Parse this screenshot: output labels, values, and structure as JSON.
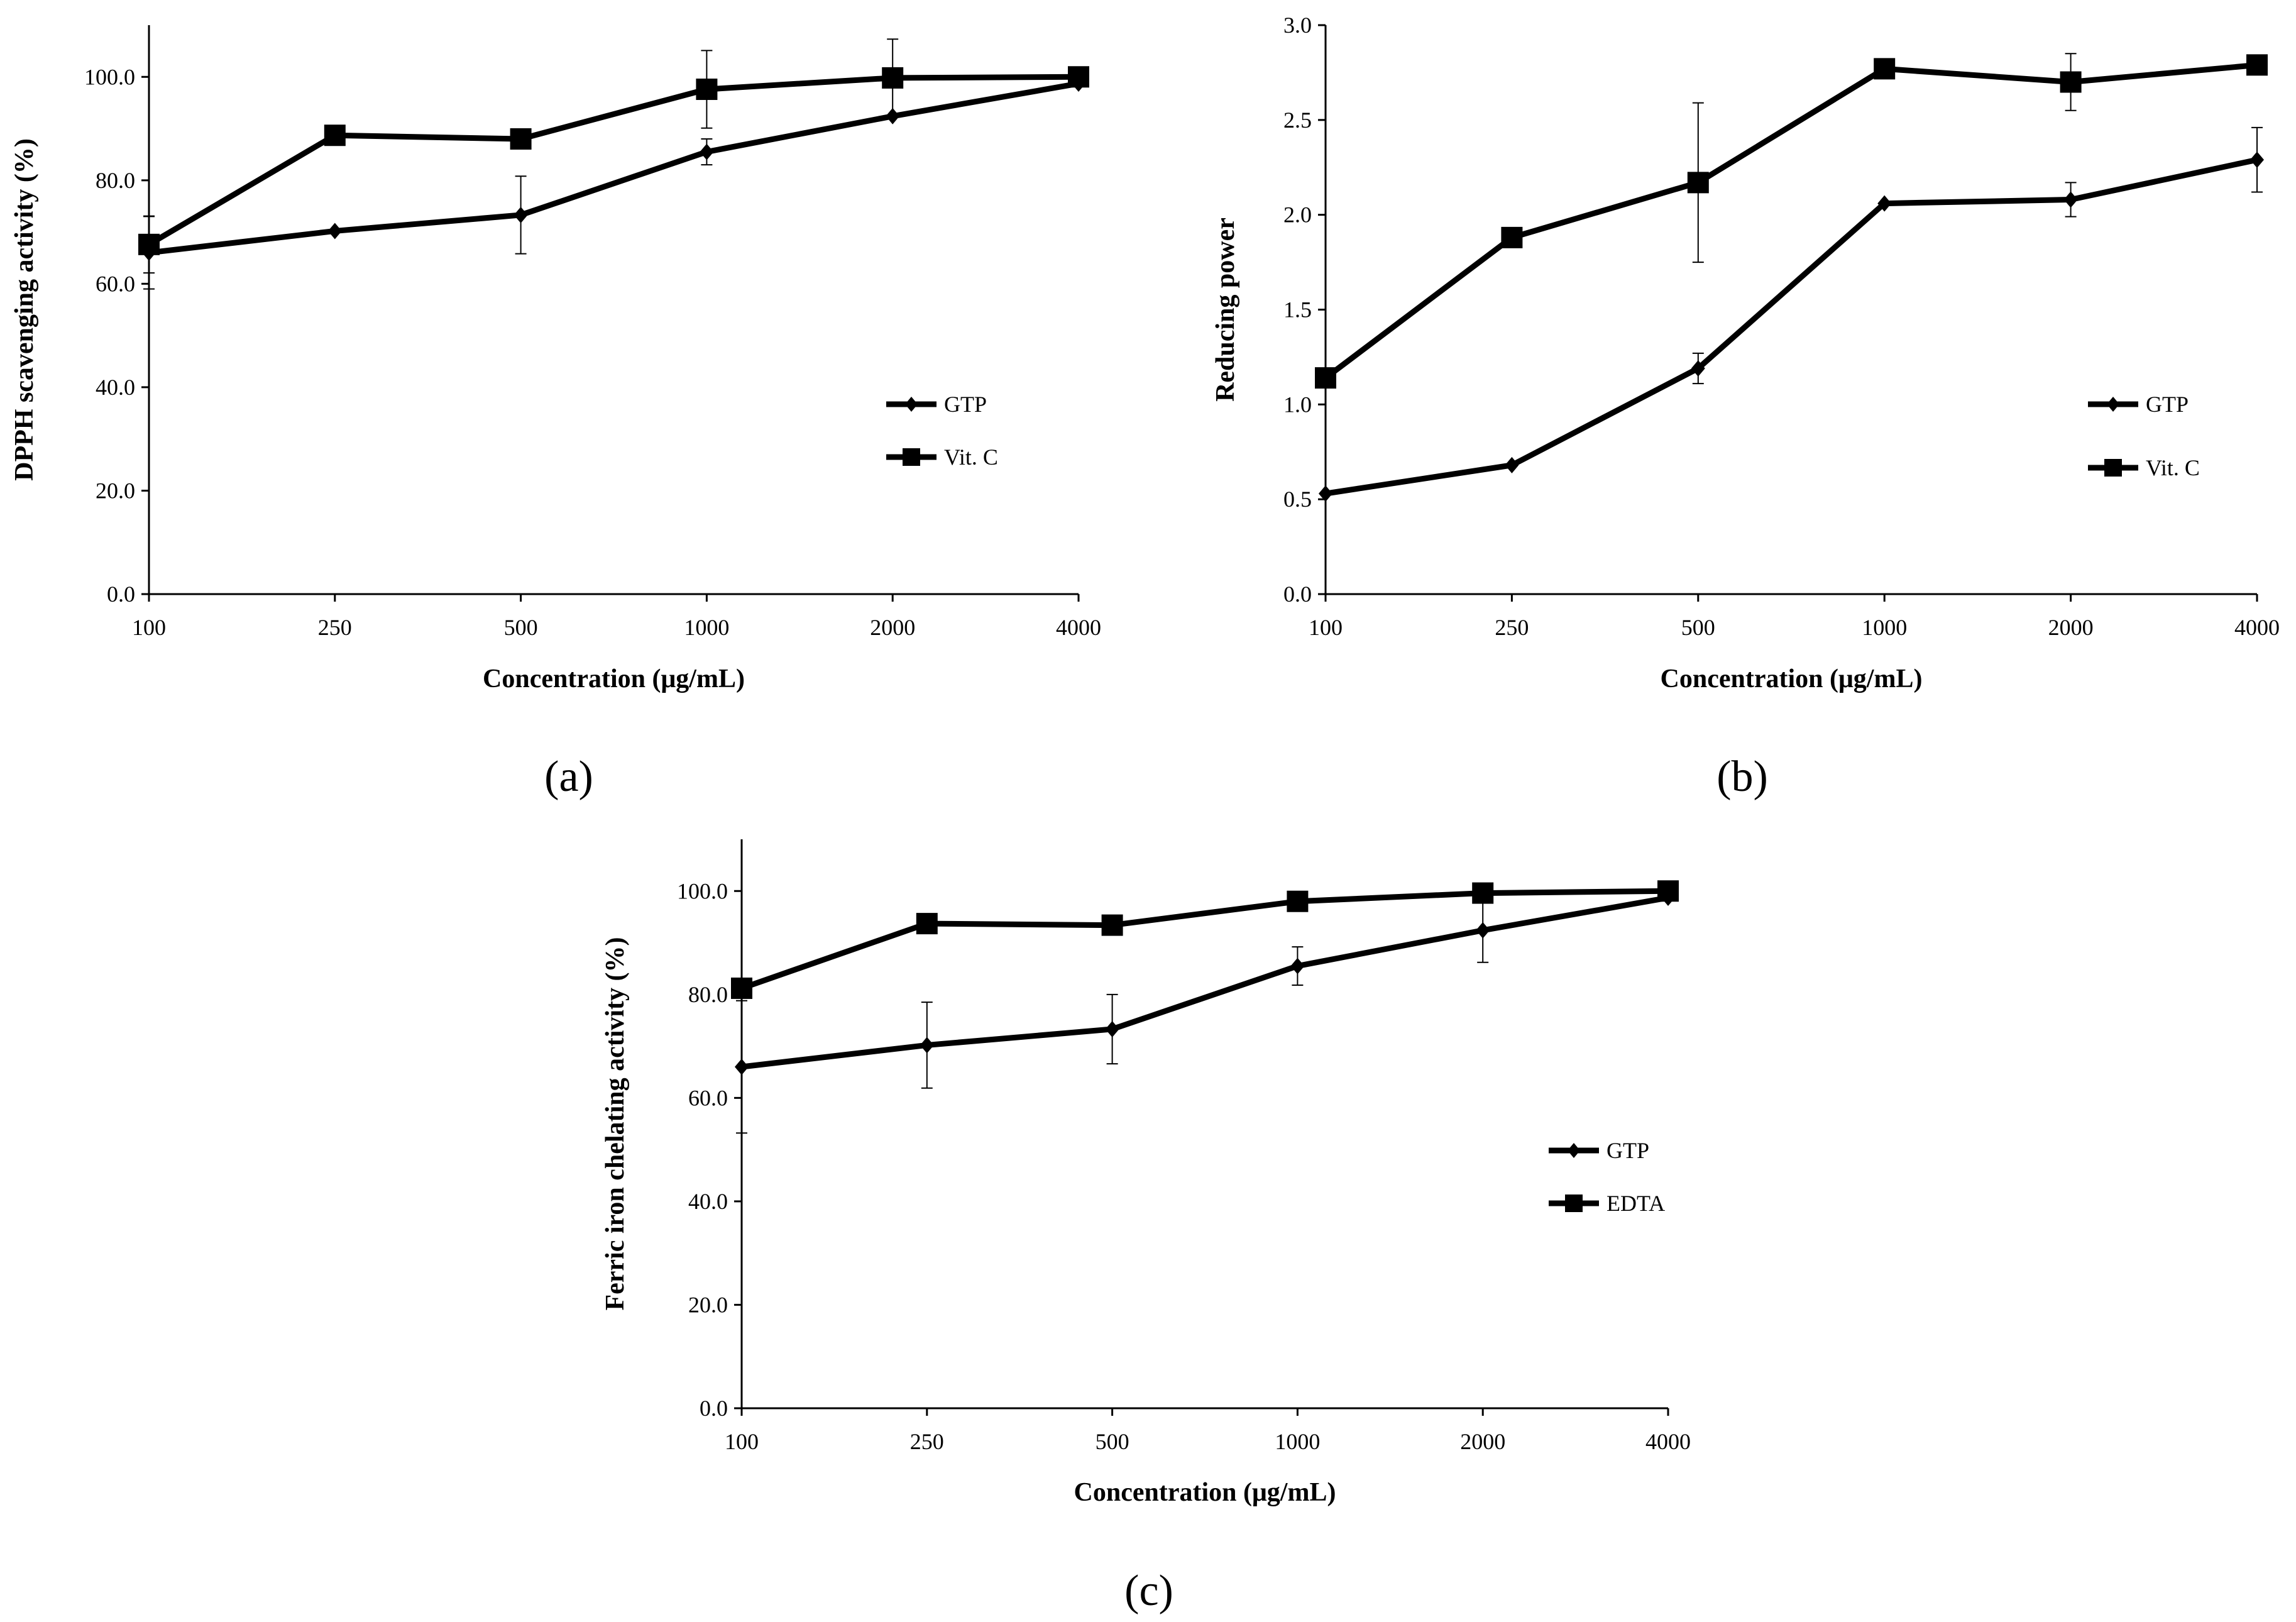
{
  "colors": {
    "ink": "#000000",
    "background": "#ffffff"
  },
  "chart_data": [
    {
      "type": "line",
      "panel_label": "(a)",
      "categories": [
        "100",
        "250",
        "500",
        "1000",
        "2000",
        "4000"
      ],
      "xlabel": "Concentration (μg/mL)",
      "ylabel": "DPPH scavenging activity (%)",
      "ylim": [
        0,
        110
      ],
      "yticks": [
        0,
        20,
        40,
        60,
        80,
        100
      ],
      "ytick_labels": [
        "0.0",
        "20.0",
        "40.0",
        "60.0",
        "80.0",
        "100.0"
      ],
      "grid": false,
      "legend_position": "right",
      "series": [
        {
          "name": "GTP",
          "marker": "diamond",
          "values": [
            66.0,
            70.2,
            73.3,
            85.5,
            92.4,
            98.7
          ],
          "error": [
            7.0,
            0,
            7.5,
            2.5,
            0,
            0
          ]
        },
        {
          "name": "Vit. C",
          "marker": "square",
          "values": [
            67.6,
            88.7,
            88.0,
            97.6,
            99.8,
            100.0
          ],
          "error": [
            5.5,
            1.5,
            0,
            7.5,
            7.5,
            0
          ]
        }
      ]
    },
    {
      "type": "line",
      "panel_label": "(b)",
      "categories": [
        "100",
        "250",
        "500",
        "1000",
        "2000",
        "4000"
      ],
      "xlabel": "Concentration (μg/mL)",
      "ylabel": "Reducing power",
      "ylim": [
        0,
        3.0
      ],
      "yticks": [
        0,
        0.5,
        1.0,
        1.5,
        2.0,
        2.5,
        3.0
      ],
      "ytick_labels": [
        "0.0",
        "0.5",
        "1.0",
        "1.5",
        "2.0",
        "2.5",
        "3.0"
      ],
      "grid": false,
      "legend_position": "right",
      "series": [
        {
          "name": "GTP",
          "marker": "diamond",
          "values": [
            0.53,
            0.68,
            1.19,
            2.06,
            2.08,
            2.29
          ],
          "error": [
            0,
            0,
            0.08,
            0,
            0.09,
            0.17
          ]
        },
        {
          "name": "Vit. C",
          "marker": "square",
          "values": [
            1.14,
            1.88,
            2.17,
            2.77,
            2.7,
            2.79
          ],
          "error": [
            0,
            0,
            0.42,
            0,
            0.15,
            0
          ]
        }
      ]
    },
    {
      "type": "line",
      "panel_label": "(c)",
      "categories": [
        "100",
        "250",
        "500",
        "1000",
        "2000",
        "4000"
      ],
      "xlabel": "Concentration (μg/mL)",
      "ylabel": "Ferric iron chelating activity (%)",
      "ylim": [
        0,
        110
      ],
      "yticks": [
        0,
        20,
        40,
        60,
        80,
        100
      ],
      "ytick_labels": [
        "0.0",
        "20.0",
        "40.0",
        "60.0",
        "80.0",
        "100.0"
      ],
      "grid": false,
      "legend_position": "right",
      "series": [
        {
          "name": "GTP",
          "marker": "diamond",
          "values": [
            66.0,
            70.2,
            73.3,
            85.5,
            92.4,
            98.7
          ],
          "error": [
            12.8,
            8.3,
            6.7,
            3.7,
            6.2,
            0
          ]
        },
        {
          "name": "EDTA",
          "marker": "square",
          "values": [
            81.2,
            93.7,
            93.4,
            98.0,
            99.6,
            100.0
          ],
          "error": [
            0,
            0,
            0,
            0,
            0,
            0
          ]
        }
      ]
    }
  ]
}
